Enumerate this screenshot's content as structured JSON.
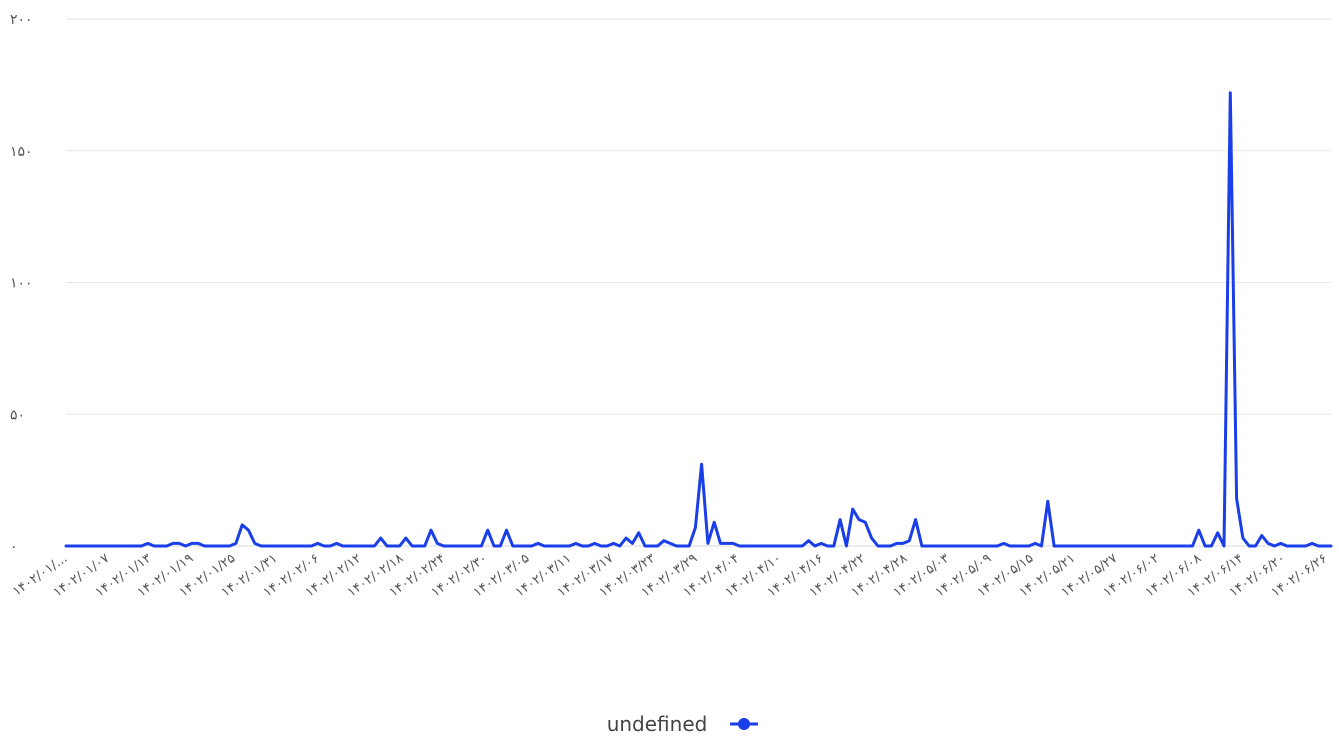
{
  "chart_data": {
    "type": "line",
    "ylim": [
      0,
      200
    ],
    "y_ticks": [
      "۰",
      "۵۰",
      "۱۰۰",
      "۱۵۰",
      "۲۰۰"
    ],
    "y_tick_values": [
      0,
      50,
      100,
      150,
      200
    ],
    "grid": true,
    "legend_position": "bottom",
    "series_color": "#1a3ee8",
    "x_tick_labels": [
      "۱۴۰۲/۰۱/...",
      "۱۴۰۲/۰۱/۰۷",
      "۱۴۰۲/۰۱/۱۳",
      "۱۴۰۲/۰۱/۱۹",
      "۱۴۰۲/۰۱/۲۵",
      "۱۴۰۲/۰۱/۳۱",
      "۱۴۰۲/۰۲/۰۶",
      "۱۴۰۲/۰۲/۱۲",
      "۱۴۰۲/۰۲/۱۸",
      "۱۴۰۲/۰۲/۲۴",
      "۱۴۰۲/۰۲/۳۰",
      "۱۴۰۲/۰۳/۰۵",
      "۱۴۰۲/۰۳/۱۱",
      "۱۴۰۲/۰۳/۱۷",
      "۱۴۰۲/۰۳/۲۳",
      "۱۴۰۲/۰۳/۲۹",
      "۱۴۰۲/۰۴/۰۴",
      "۱۴۰۲/۰۴/۱۰",
      "۱۴۰۲/۰۴/۱۶",
      "۱۴۰۲/۰۴/۲۲",
      "۱۴۰۲/۰۴/۲۸",
      "۱۴۰۲/۰۵/۰۳",
      "۱۴۰۲/۰۵/۰۹",
      "۱۴۰۲/۰۵/۱۵",
      "۱۴۰۲/۰۵/۲۱",
      "۱۴۰۲/۰۵/۲۷",
      "۱۴۰۲/۰۶/۰۲",
      "۱۴۰۲/۰۶/۰۸",
      "۱۴۰۲/۰۶/۱۴",
      "۱۴۰۲/۰۶/۲۰",
      "۱۴۰۲/۰۶/۲۶"
    ],
    "series": [
      {
        "name": "undefined",
        "values": [
          0,
          0,
          0,
          0,
          0,
          0,
          0,
          0,
          0,
          0,
          0,
          0,
          0,
          1,
          0,
          0,
          0,
          1,
          1,
          0,
          1,
          1,
          0,
          0,
          0,
          0,
          0,
          1,
          8,
          6,
          1,
          0,
          0,
          0,
          0,
          0,
          0,
          0,
          0,
          0,
          1,
          0,
          0,
          1,
          0,
          0,
          0,
          0,
          0,
          0,
          3,
          0,
          0,
          0,
          3,
          0,
          0,
          0,
          6,
          1,
          0,
          0,
          0,
          0,
          0,
          0,
          0,
          6,
          0,
          0,
          6,
          0,
          0,
          0,
          0,
          1,
          0,
          0,
          0,
          0,
          0,
          1,
          0,
          0,
          1,
          0,
          0,
          1,
          0,
          3,
          1,
          5,
          0,
          0,
          0,
          2,
          1,
          0,
          0,
          0,
          7,
          31,
          1,
          9,
          1,
          1,
          1,
          0,
          0,
          0,
          0,
          0,
          0,
          0,
          0,
          0,
          0,
          0,
          2,
          0,
          1,
          0,
          0,
          10,
          0,
          14,
          10,
          9,
          3,
          0,
          0,
          0,
          1,
          1,
          2,
          10,
          0,
          0,
          0,
          0,
          0,
          0,
          0,
          0,
          0,
          0,
          0,
          0,
          0,
          1,
          0,
          0,
          0,
          0,
          1,
          0,
          17,
          0,
          0,
          0,
          0,
          0,
          0,
          0,
          0,
          0,
          0,
          0,
          0,
          0,
          0,
          0,
          0,
          0,
          0,
          0,
          0,
          0,
          0,
          0,
          6,
          0,
          0,
          5,
          0,
          172,
          18,
          3,
          0,
          0,
          4,
          1,
          0,
          1,
          0,
          0,
          0,
          0,
          1,
          0,
          0,
          0
        ]
      }
    ]
  }
}
